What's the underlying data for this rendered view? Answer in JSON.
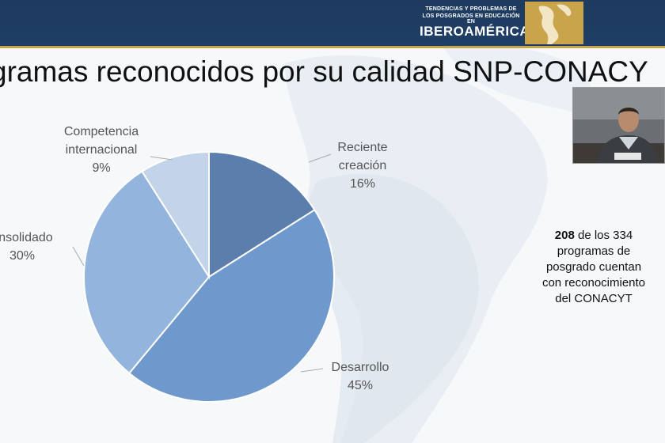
{
  "header": {
    "logo_line1": "TENDENCIAS Y PROBLEMAS DE",
    "logo_line2": "LOS POSGRADOS EN EDUCACIÓN EN",
    "logo_line3": "IBEROAMÉRICA",
    "bar_color": "#1d3a5f",
    "accent_color": "#c9a44a"
  },
  "slide": {
    "title": "gramas reconocidos por su calidad SNP-CONACY"
  },
  "chart_data": {
    "type": "pie",
    "title": "",
    "slices": [
      {
        "name": "Reciente creación",
        "value": 16,
        "label_lines": [
          "Reciente",
          "creación"
        ],
        "pct_label": "16%",
        "color": "#5b7ead"
      },
      {
        "name": "Desarrollo",
        "value": 45,
        "label_lines": [
          "Desarrollo"
        ],
        "pct_label": "45%",
        "color": "#6f99cc"
      },
      {
        "name": "Consolidado",
        "value": 30,
        "label_lines": [
          "onsolidado"
        ],
        "pct_label": "30%",
        "color": "#93b4dc"
      },
      {
        "name": "Competencia internacional",
        "value": 9,
        "label_lines": [
          "Competencia",
          "internacional"
        ],
        "pct_label": "9%",
        "color": "#c2d3ea"
      }
    ],
    "start_angle_deg": 0,
    "direction": "clockwise"
  },
  "side_note": {
    "bold": "208",
    "text": " de los 334 programas de posgrado cuentan con reconocimiento del CONACYT"
  },
  "video": {
    "nameplate": ""
  }
}
